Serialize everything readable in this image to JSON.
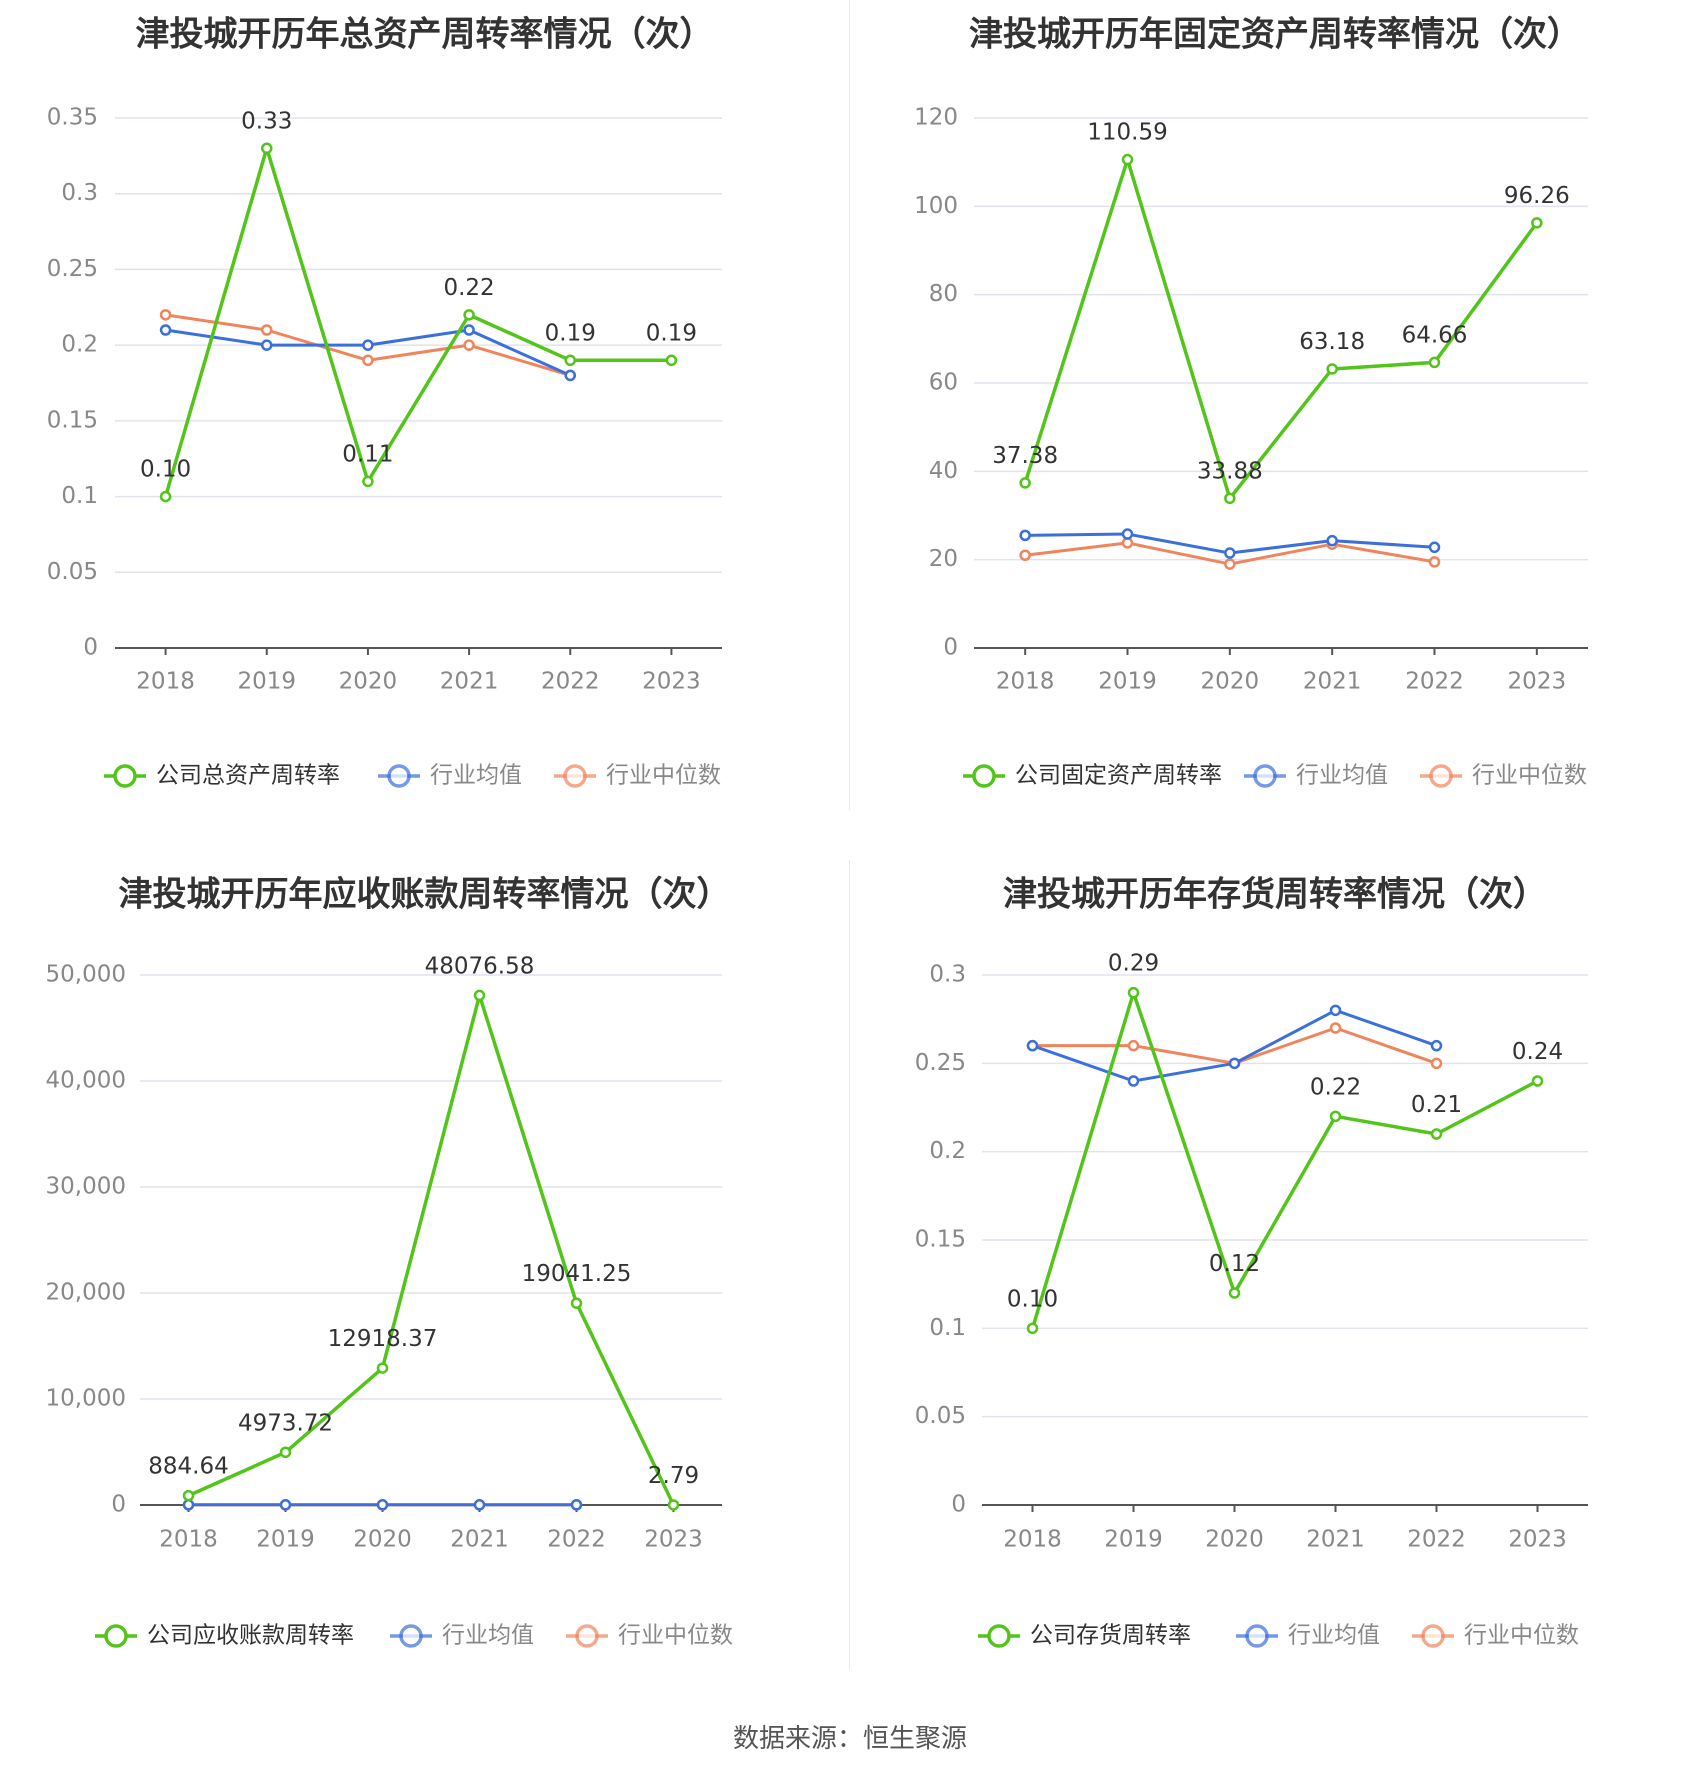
{
  "colors": {
    "company": "#52c41a",
    "industry_avg": "#3b6fdb",
    "industry_median": "#f0845c",
    "grid": "#e0e3ee",
    "axis": "#555555",
    "tick_text": "#888888",
    "title_text": "#333333"
  },
  "source_text": "数据来源：恒生聚源",
  "chart_data": [
    {
      "type": "line",
      "title": "津投城开历年总资产周转率情况（次）",
      "categories": [
        "2018",
        "2019",
        "2020",
        "2021",
        "2022",
        "2023"
      ],
      "y_ticks": [
        "0",
        "0.05",
        "0.1",
        "0.15",
        "0.2",
        "0.25",
        "0.3",
        "0.35"
      ],
      "ylim": [
        0,
        0.35
      ],
      "grid": true,
      "legend_position": "bottom",
      "series": [
        {
          "name": "公司总资产周转率",
          "color_key": "company",
          "values": [
            0.1,
            0.33,
            0.11,
            0.22,
            0.19,
            0.19
          ],
          "labels": [
            "0.10",
            "0.33",
            "0.11",
            "0.22",
            "0.19",
            "0.19"
          ]
        },
        {
          "name": "行业均值",
          "color_key": "industry_avg",
          "values": [
            0.21,
            0.2,
            0.2,
            0.21,
            0.18,
            null
          ],
          "labels": []
        },
        {
          "name": "行业中位数",
          "color_key": "industry_median",
          "values": [
            0.22,
            0.21,
            0.19,
            0.2,
            0.18,
            null
          ],
          "labels": []
        }
      ]
    },
    {
      "type": "line",
      "title": "津投城开历年固定资产周转率情况（次）",
      "categories": [
        "2018",
        "2019",
        "2020",
        "2021",
        "2022",
        "2023"
      ],
      "y_ticks": [
        "0",
        "20",
        "40",
        "60",
        "80",
        "100",
        "120"
      ],
      "ylim": [
        0,
        120
      ],
      "grid": true,
      "legend_position": "bottom",
      "series": [
        {
          "name": "公司固定资产周转率",
          "color_key": "company",
          "values": [
            37.38,
            110.59,
            33.88,
            63.18,
            64.66,
            96.26
          ],
          "labels": [
            "37.38",
            "110.59",
            "33.88",
            "63.18",
            "64.66",
            "96.26"
          ]
        },
        {
          "name": "行业均值",
          "color_key": "industry_avg",
          "values": [
            25.5,
            25.8,
            21.5,
            24.3,
            22.8,
            null
          ],
          "labels": []
        },
        {
          "name": "行业中位数",
          "color_key": "industry_median",
          "values": [
            21.0,
            23.8,
            19.0,
            23.5,
            19.5,
            null
          ],
          "labels": []
        }
      ]
    },
    {
      "type": "line",
      "title": "津投城开历年应收账款周转率情况（次）",
      "categories": [
        "2018",
        "2019",
        "2020",
        "2021",
        "2022",
        "2023"
      ],
      "y_ticks": [
        "0",
        "10,000",
        "20,000",
        "30,000",
        "40,000",
        "50,000"
      ],
      "ylim": [
        0,
        50000
      ],
      "grid": true,
      "legend_position": "bottom",
      "series": [
        {
          "name": "公司应收账款周转率",
          "color_key": "company",
          "values": [
            884.64,
            4973.72,
            12918.37,
            48076.58,
            19041.25,
            2.79
          ],
          "labels": [
            "884.64",
            "4973.72",
            "12918.37",
            "48076.58",
            "19041.25",
            "2.79"
          ]
        },
        {
          "name": "行业均值",
          "color_key": "industry_avg",
          "values": [
            20,
            20,
            20,
            20,
            20,
            null
          ],
          "labels": []
        },
        {
          "name": "行业中位数",
          "color_key": "industry_median",
          "values": [
            10,
            10,
            10,
            10,
            10,
            null
          ],
          "labels": []
        }
      ]
    },
    {
      "type": "line",
      "title": "津投城开历年存货周转率情况（次）",
      "categories": [
        "2018",
        "2019",
        "2020",
        "2021",
        "2022",
        "2023"
      ],
      "y_ticks": [
        "0",
        "0.05",
        "0.1",
        "0.15",
        "0.2",
        "0.25",
        "0.3"
      ],
      "ylim": [
        0,
        0.3
      ],
      "grid": true,
      "legend_position": "bottom",
      "series": [
        {
          "name": "公司存货周转率",
          "color_key": "company",
          "values": [
            0.1,
            0.29,
            0.12,
            0.22,
            0.21,
            0.24
          ],
          "labels": [
            "0.10",
            "0.29",
            "0.12",
            "0.22",
            "0.21",
            "0.24"
          ]
        },
        {
          "name": "行业均值",
          "color_key": "industry_avg",
          "values": [
            0.26,
            0.24,
            0.25,
            0.28,
            0.26,
            null
          ],
          "labels": []
        },
        {
          "name": "行业中位数",
          "color_key": "industry_median",
          "values": [
            0.26,
            0.26,
            0.25,
            0.27,
            0.25,
            null
          ],
          "labels": []
        }
      ]
    }
  ]
}
